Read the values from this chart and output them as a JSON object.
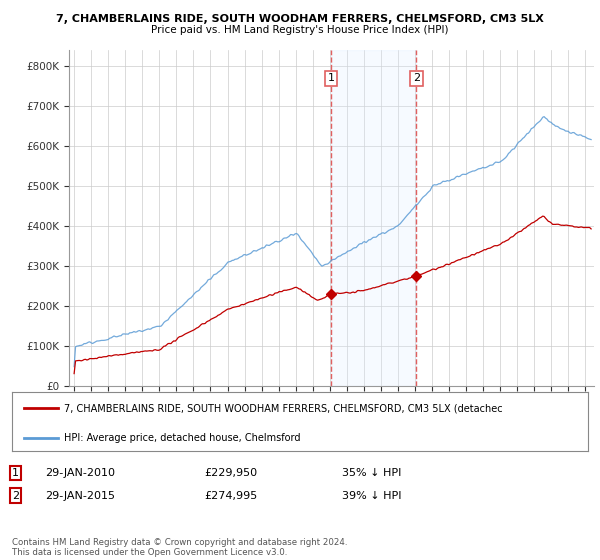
{
  "title_line1": "7, CHAMBERLAINS RIDE, SOUTH WOODHAM FERRERS, CHELMSFORD, CM3 5LX",
  "title_line2": "Price paid vs. HM Land Registry's House Price Index (HPI)",
  "ylabel_ticks": [
    "£0",
    "£100K",
    "£200K",
    "£300K",
    "£400K",
    "£500K",
    "£600K",
    "£700K",
    "£800K"
  ],
  "ytick_values": [
    0,
    100000,
    200000,
    300000,
    400000,
    500000,
    600000,
    700000,
    800000
  ],
  "ylim": [
    0,
    840000
  ],
  "xlim_start": 1994.7,
  "xlim_end": 2025.5,
  "hpi_color": "#5b9bd5",
  "price_color": "#c00000",
  "marker1_x": 2010.08,
  "marker1_y": 229950,
  "marker2_x": 2015.08,
  "marker2_y": 274995,
  "legend_label_price": "7, CHAMBERLAINS RIDE, SOUTH WOODHAM FERRERS, CHELMSFORD, CM3 5LX (detachec",
  "legend_label_hpi": "HPI: Average price, detached house, Chelmsford",
  "annotation1_date": "29-JAN-2010",
  "annotation1_price": "£229,950",
  "annotation1_pct": "35% ↓ HPI",
  "annotation2_date": "29-JAN-2015",
  "annotation2_price": "£274,995",
  "annotation2_pct": "39% ↓ HPI",
  "footer": "Contains HM Land Registry data © Crown copyright and database right 2024.\nThis data is licensed under the Open Government Licence v3.0.",
  "background_color": "#ffffff",
  "grid_color": "#cccccc",
  "vline_color": "#e06060",
  "span_color": "#ddeeff"
}
